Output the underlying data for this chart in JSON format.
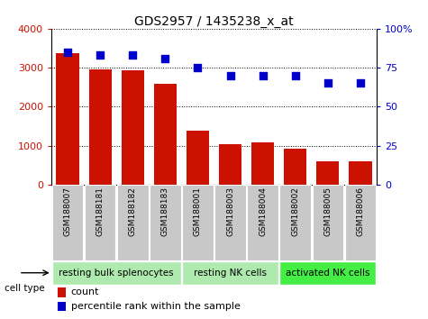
{
  "title": "GDS2957 / 1435238_x_at",
  "samples": [
    "GSM188007",
    "GSM188181",
    "GSM188182",
    "GSM188183",
    "GSM188001",
    "GSM188003",
    "GSM188004",
    "GSM188002",
    "GSM188005",
    "GSM188006"
  ],
  "counts": [
    3380,
    2950,
    2930,
    2580,
    1380,
    1030,
    1090,
    920,
    600,
    590
  ],
  "percentiles": [
    85,
    83,
    83,
    81,
    75,
    70,
    70,
    70,
    65,
    65
  ],
  "bar_color": "#cc1100",
  "dot_color": "#0000cc",
  "ylim_left": [
    0,
    4000
  ],
  "ylim_right": [
    0,
    100
  ],
  "yticks_left": [
    0,
    1000,
    2000,
    3000,
    4000
  ],
  "yticks_right": [
    0,
    25,
    50,
    75,
    100
  ],
  "ytick_labels_right": [
    "0",
    "25",
    "50",
    "75",
    "100%"
  ],
  "cell_groups": [
    {
      "label": "resting bulk splenocytes",
      "start": 0,
      "end": 3,
      "color": "#aeeaae"
    },
    {
      "label": "resting NK cells",
      "start": 4,
      "end": 6,
      "color": "#aeeaae"
    },
    {
      "label": "activated NK cells",
      "start": 7,
      "end": 9,
      "color": "#44ee44"
    }
  ],
  "cell_type_label": "cell type",
  "legend_count_label": "count",
  "legend_percentile_label": "percentile rank within the sample",
  "tick_bg_color": "#c8c8c8",
  "grid_color": "#000000",
  "group_border_color": "#ffffff",
  "fig_bg_color": "#ffffff"
}
